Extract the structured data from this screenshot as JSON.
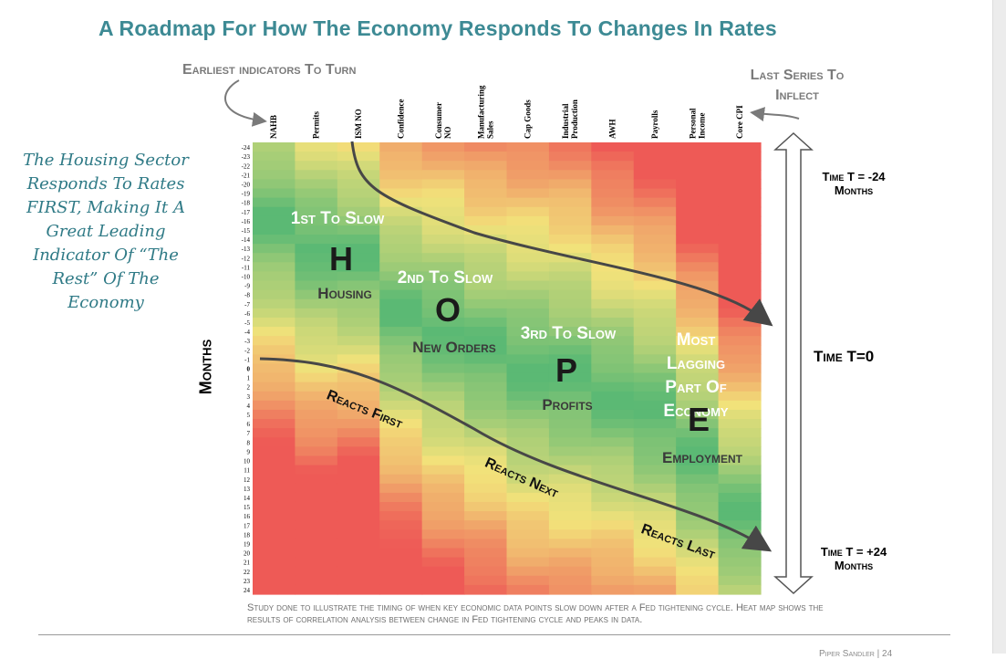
{
  "page": {
    "title": "A Roadmap For How The Economy Responds To Changes In Rates",
    "callout_left": "Earliest indicators To Turn",
    "callout_right": "Last Series To Inflect",
    "hand_note": "The Housing Sector Responds To Rates FIRST, Making It A Great Leading Indicator Of “The Rest” Of The Economy",
    "time_start": "Time T = -24 Months",
    "time_zero": "Time T=0",
    "time_end": "Time T = +24 Months",
    "footnote": "Study done to illustrate the timing of when key economic data points slow down after a Fed tightening cycle. Heat map shows the results of correlation analysis between change in Fed tightening cycle and peaks in data.",
    "page_footer": "Piper Sandler | 24"
  },
  "chart_data": {
    "type": "heatmap",
    "title": "A Roadmap For How The Economy Responds To Changes In Rates",
    "ylabel": "Months",
    "categories": [
      "NAHB",
      "Permits",
      "ISM NO",
      "Confidence",
      "Consumer NO",
      "Manufacturing Sales",
      "Cap Goods",
      "Industrial Production",
      "AWH",
      "Payrolls",
      "Personal Income",
      "Core CPI"
    ],
    "months": [
      -24,
      -23,
      -22,
      -21,
      -20,
      -19,
      -18,
      -17,
      -16,
      -15,
      -14,
      -13,
      -12,
      -11,
      -10,
      -9,
      -8,
      -7,
      -6,
      -5,
      -4,
      -3,
      -2,
      -1,
      0,
      1,
      2,
      3,
      4,
      5,
      6,
      7,
      8,
      9,
      10,
      11,
      12,
      13,
      14,
      15,
      16,
      17,
      18,
      19,
      20,
      21,
      22,
      23,
      24
    ],
    "color_scale": {
      "positive": "#5bb974",
      "neutral": "#f2e27a",
      "negative": "#ee5a56"
    },
    "stages": [
      {
        "letter": "H",
        "order": "1st To Slow",
        "name": "Housing"
      },
      {
        "letter": "O",
        "order": "2nd To Slow",
        "name": "New Orders"
      },
      {
        "letter": "P",
        "order": "3rd To Slow",
        "name": "Profits"
      },
      {
        "letter": "E",
        "order": "Most Lagging Part Of Economy",
        "name": "Employment"
      }
    ],
    "reaction_labels": [
      "Reacts First",
      "Reacts Next",
      "Reacts Last"
    ]
  }
}
